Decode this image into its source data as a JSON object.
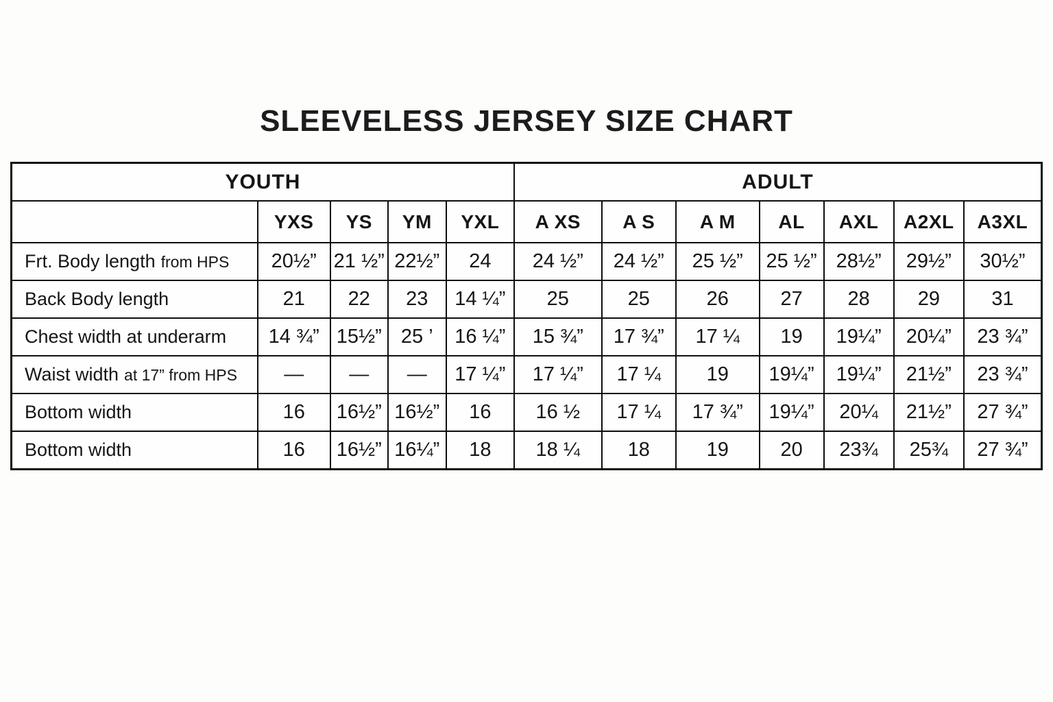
{
  "title": "SLEEVELESS JERSEY SIZE CHART",
  "colors": {
    "background": "#fdfdfc",
    "text": "#161616",
    "border": "#0d0d0d"
  },
  "table": {
    "groups": [
      {
        "label": "YOUTH",
        "span_columns": 4
      },
      {
        "label": "ADULT",
        "span_columns": 7
      }
    ],
    "columns": [
      "YXS",
      "YS",
      "YM",
      "YXL",
      "A XS",
      "A S",
      "A M",
      "AL",
      "AXL",
      "A2XL",
      "A3XL"
    ],
    "rows": [
      {
        "label": "Frt. Body length",
        "label_suffix": "from HPS",
        "values": [
          "20½”",
          "21 ½”",
          "22½”",
          "24",
          "24 ½”",
          "24 ½”",
          "25 ½”",
          "25 ½”",
          "28½”",
          "29½”",
          "30½”"
        ]
      },
      {
        "label": "Back Body length",
        "label_suffix": "",
        "values": [
          "21",
          "22",
          "23",
          "14 ¼”",
          "25",
          "25",
          "26",
          "27",
          "28",
          "29",
          "31"
        ]
      },
      {
        "label": "Chest width at underarm",
        "label_suffix": "",
        "values": [
          "14 ¾”",
          "15½”",
          "25 ’",
          "16 ¼”",
          "15 ¾”",
          "17 ¾”",
          "17 ¼",
          "19",
          "19¼”",
          "20¼”",
          "23 ¾”"
        ]
      },
      {
        "label": "Waist width",
        "label_suffix": "at 17” from HPS",
        "values": [
          "—",
          "—",
          "—",
          "17 ¼”",
          "17 ¼”",
          "17 ¼",
          "19",
          "19¼”",
          "19¼”",
          "21½”",
          "23 ¾”"
        ]
      },
      {
        "label": "Bottom width",
        "label_suffix": "",
        "values": [
          "16",
          "16½”",
          "16½”",
          "16",
          "16 ½",
          "17 ¼",
          "17 ¾”",
          "19¼”",
          "20¼",
          "21½”",
          "27 ¾”"
        ]
      },
      {
        "label": "Bottom width",
        "label_suffix": "",
        "values": [
          "16",
          "16½”",
          "16¼”",
          "18",
          "18 ¼",
          "18",
          "19",
          "20",
          "23¾",
          "25¾",
          "27 ¾”"
        ]
      }
    ]
  }
}
